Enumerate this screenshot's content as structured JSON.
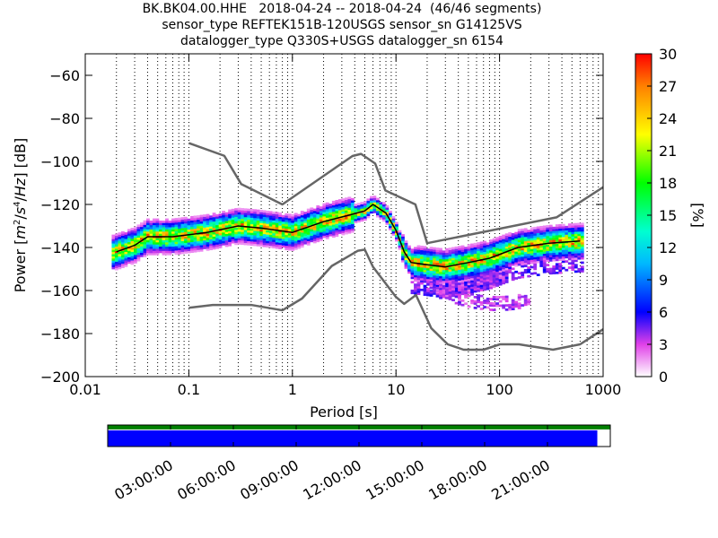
{
  "title": {
    "line1": "BK.BK04.00.HHE   2018-04-24 -- 2018-04-24  (46/46 segments)",
    "line2": "sensor_type REFTEK151B-120USGS sensor_sn G14125VS",
    "line3": "datalogger_type Q330S+USGS datalogger_sn 6154"
  },
  "chart_data": [
    {
      "type": "heatmap",
      "title": "BK.BK04.00.HHE   2018-04-24 -- 2018-04-24  (46/46 segments)",
      "xlabel": "Period [s]",
      "ylabel": "Power [m²/s⁴/Hz] [dB]",
      "xscale": "log",
      "xlim": [
        0.01,
        1000
      ],
      "ylim": [
        -200,
        -50
      ],
      "xticks": [
        {
          "value": 0.01,
          "label": "0.01"
        },
        {
          "value": 0.1,
          "label": "0.1"
        },
        {
          "value": 1,
          "label": "1"
        },
        {
          "value": 10,
          "label": "10"
        },
        {
          "value": 100,
          "label": "100"
        },
        {
          "value": 1000,
          "label": "1000"
        }
      ],
      "yticks": [
        {
          "value": -60,
          "label": "−60"
        },
        {
          "value": -80,
          "label": "−80"
        },
        {
          "value": -100,
          "label": "−100"
        },
        {
          "value": -120,
          "label": "−120"
        },
        {
          "value": -140,
          "label": "−140"
        },
        {
          "value": -160,
          "label": "−160"
        },
        {
          "value": -180,
          "label": "−180"
        },
        {
          "value": -200,
          "label": "−200"
        }
      ],
      "grid": "dotted vertical at log minor periods",
      "noise_models": {
        "color": "#666666",
        "high": [
          [
            0.1,
            -91.5
          ],
          [
            0.22,
            -97.4
          ],
          [
            0.32,
            -110.5
          ],
          [
            0.8,
            -120
          ],
          [
            3.8,
            -97.5
          ],
          [
            4.6,
            -96.5
          ],
          [
            6.3,
            -101
          ],
          [
            7.9,
            -113.5
          ],
          [
            15.4,
            -120
          ],
          [
            20,
            -138
          ],
          [
            354.8,
            -126
          ],
          [
            1000,
            -112
          ]
        ],
        "low": [
          [
            0.1,
            -168
          ],
          [
            0.17,
            -166.7
          ],
          [
            0.4,
            -166.7
          ],
          [
            0.8,
            -169.2
          ],
          [
            1.24,
            -163.7
          ],
          [
            2.4,
            -148.6
          ],
          [
            4.3,
            -141.5
          ],
          [
            5,
            -141
          ],
          [
            6,
            -149
          ],
          [
            10,
            -163
          ],
          [
            12,
            -166.2
          ],
          [
            15.6,
            -162.1
          ],
          [
            21.9,
            -177.5
          ],
          [
            31.6,
            -185
          ],
          [
            45,
            -187.5
          ],
          [
            70,
            -187.5
          ],
          [
            101,
            -185
          ],
          [
            154,
            -185
          ],
          [
            328,
            -187.5
          ],
          [
            600,
            -185
          ],
          [
            1000,
            -178
          ]
        ]
      },
      "mode_curve": {
        "color": "#000000",
        "points": [
          [
            0.02,
            -142
          ],
          [
            0.03,
            -139
          ],
          [
            0.04,
            -135
          ],
          [
            0.07,
            -135
          ],
          [
            0.15,
            -133
          ],
          [
            0.3,
            -130
          ],
          [
            0.5,
            -131
          ],
          [
            1,
            -133
          ],
          [
            2,
            -128
          ],
          [
            3.5,
            -125
          ],
          [
            5,
            -123
          ],
          [
            6,
            -120
          ],
          [
            8,
            -124
          ],
          [
            10,
            -132
          ],
          [
            12,
            -142
          ],
          [
            14,
            -147
          ],
          [
            20,
            -148
          ],
          [
            30,
            -149
          ],
          [
            50,
            -147
          ],
          [
            80,
            -145
          ],
          [
            150,
            -140
          ],
          [
            300,
            -138
          ],
          [
            600,
            -137
          ]
        ]
      },
      "colorbar": {
        "label": "[%]",
        "range": [
          0,
          30
        ],
        "ticks": [
          {
            "value": 0,
            "label": "0"
          },
          {
            "value": 3,
            "label": "3"
          },
          {
            "value": 6,
            "label": "6"
          },
          {
            "value": 9,
            "label": "9"
          },
          {
            "value": 12,
            "label": "12"
          },
          {
            "value": 15,
            "label": "15"
          },
          {
            "value": 18,
            "label": "18"
          },
          {
            "value": 21,
            "label": "21"
          },
          {
            "value": 24,
            "label": "24"
          },
          {
            "value": 27,
            "label": "27"
          },
          {
            "value": 30,
            "label": "30"
          }
        ],
        "colormap": "pqlx"
      }
    },
    {
      "type": "timeline",
      "description": "data coverage bar",
      "ticks": [
        "03:00:00",
        "06:00:00",
        "09:00:00",
        "12:00:00",
        "15:00:00",
        "18:00:00",
        "21:00:00"
      ],
      "rows": [
        {
          "color": "#008000",
          "coverage_fraction": 1.0
        },
        {
          "color": "#0000ff",
          "coverage_fraction": 0.975
        }
      ]
    }
  ]
}
